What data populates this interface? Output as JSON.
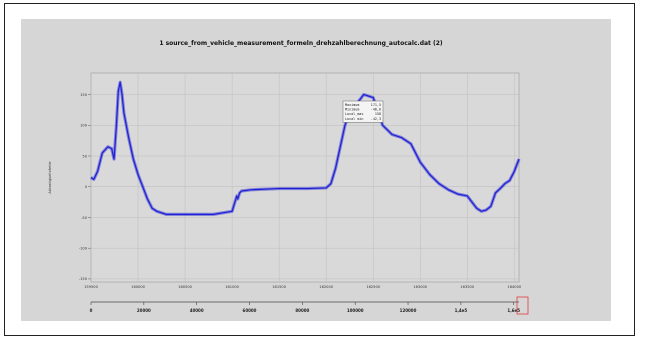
{
  "chart_data": {
    "type": "line",
    "title": "1 source_from_vehicle_measurement_formeln_drehzahlberechnung_autocalc.dat (2)",
    "ylabel": "Abtastigkeitsfehle",
    "xlabel": "",
    "x_ticks": [
      "159500",
      "160000",
      "160500",
      "161000",
      "161500",
      "162000",
      "162500",
      "163000",
      "163500",
      "164000"
    ],
    "x2_ticks": [
      "0",
      "20000",
      "40000",
      "60000",
      "80000",
      "100000",
      "120000",
      "1,4e5",
      "1,6e5"
    ],
    "y_ticks": [
      "150",
      "100",
      "50",
      "0",
      "-50",
      "-100",
      "-150"
    ],
    "xlim": [
      159500,
      164050
    ],
    "ylim": [
      -155,
      185
    ],
    "grid": true,
    "series": [
      {
        "color": "#1f1fd6",
        "x": [
          159500,
          159530,
          159570,
          159620,
          159680,
          159720,
          159745,
          159770,
          159790,
          159810,
          159830,
          159850,
          159900,
          159950,
          160000,
          160050,
          160100,
          160150,
          160200,
          160300,
          160500,
          160800,
          161000,
          161050,
          161060,
          161080,
          161100,
          161200,
          161500,
          161800,
          162000,
          162050,
          162100,
          162150,
          162200,
          162250,
          162300,
          162400,
          162500,
          162600,
          162700,
          162800,
          162900,
          163000,
          163100,
          163200,
          163300,
          163400,
          163500,
          163550,
          163600,
          163650,
          163700,
          163750,
          163800,
          163850,
          163900,
          163950,
          164000,
          164050
        ],
        "y": [
          15,
          12,
          25,
          55,
          65,
          62,
          45,
          100,
          155,
          170,
          150,
          120,
          80,
          45,
          20,
          0,
          -20,
          -35,
          -40,
          -45,
          -45,
          -45,
          -40,
          -15,
          -20,
          -10,
          -7,
          -5,
          -3,
          -3,
          -2,
          5,
          30,
          65,
          100,
          120,
          130,
          150,
          145,
          100,
          85,
          80,
          70,
          40,
          20,
          5,
          -5,
          -12,
          -15,
          -25,
          -35,
          -40,
          -38,
          -32,
          -10,
          -3,
          5,
          10,
          25,
          45
        ]
      }
    ],
    "legend": {
      "labels": [
        "Maximum",
        "Minimum",
        "Local_max",
        "Local min"
      ],
      "values": [
        "171,5",
        "-46,6",
        "158",
        "-42,3"
      ]
    }
  }
}
